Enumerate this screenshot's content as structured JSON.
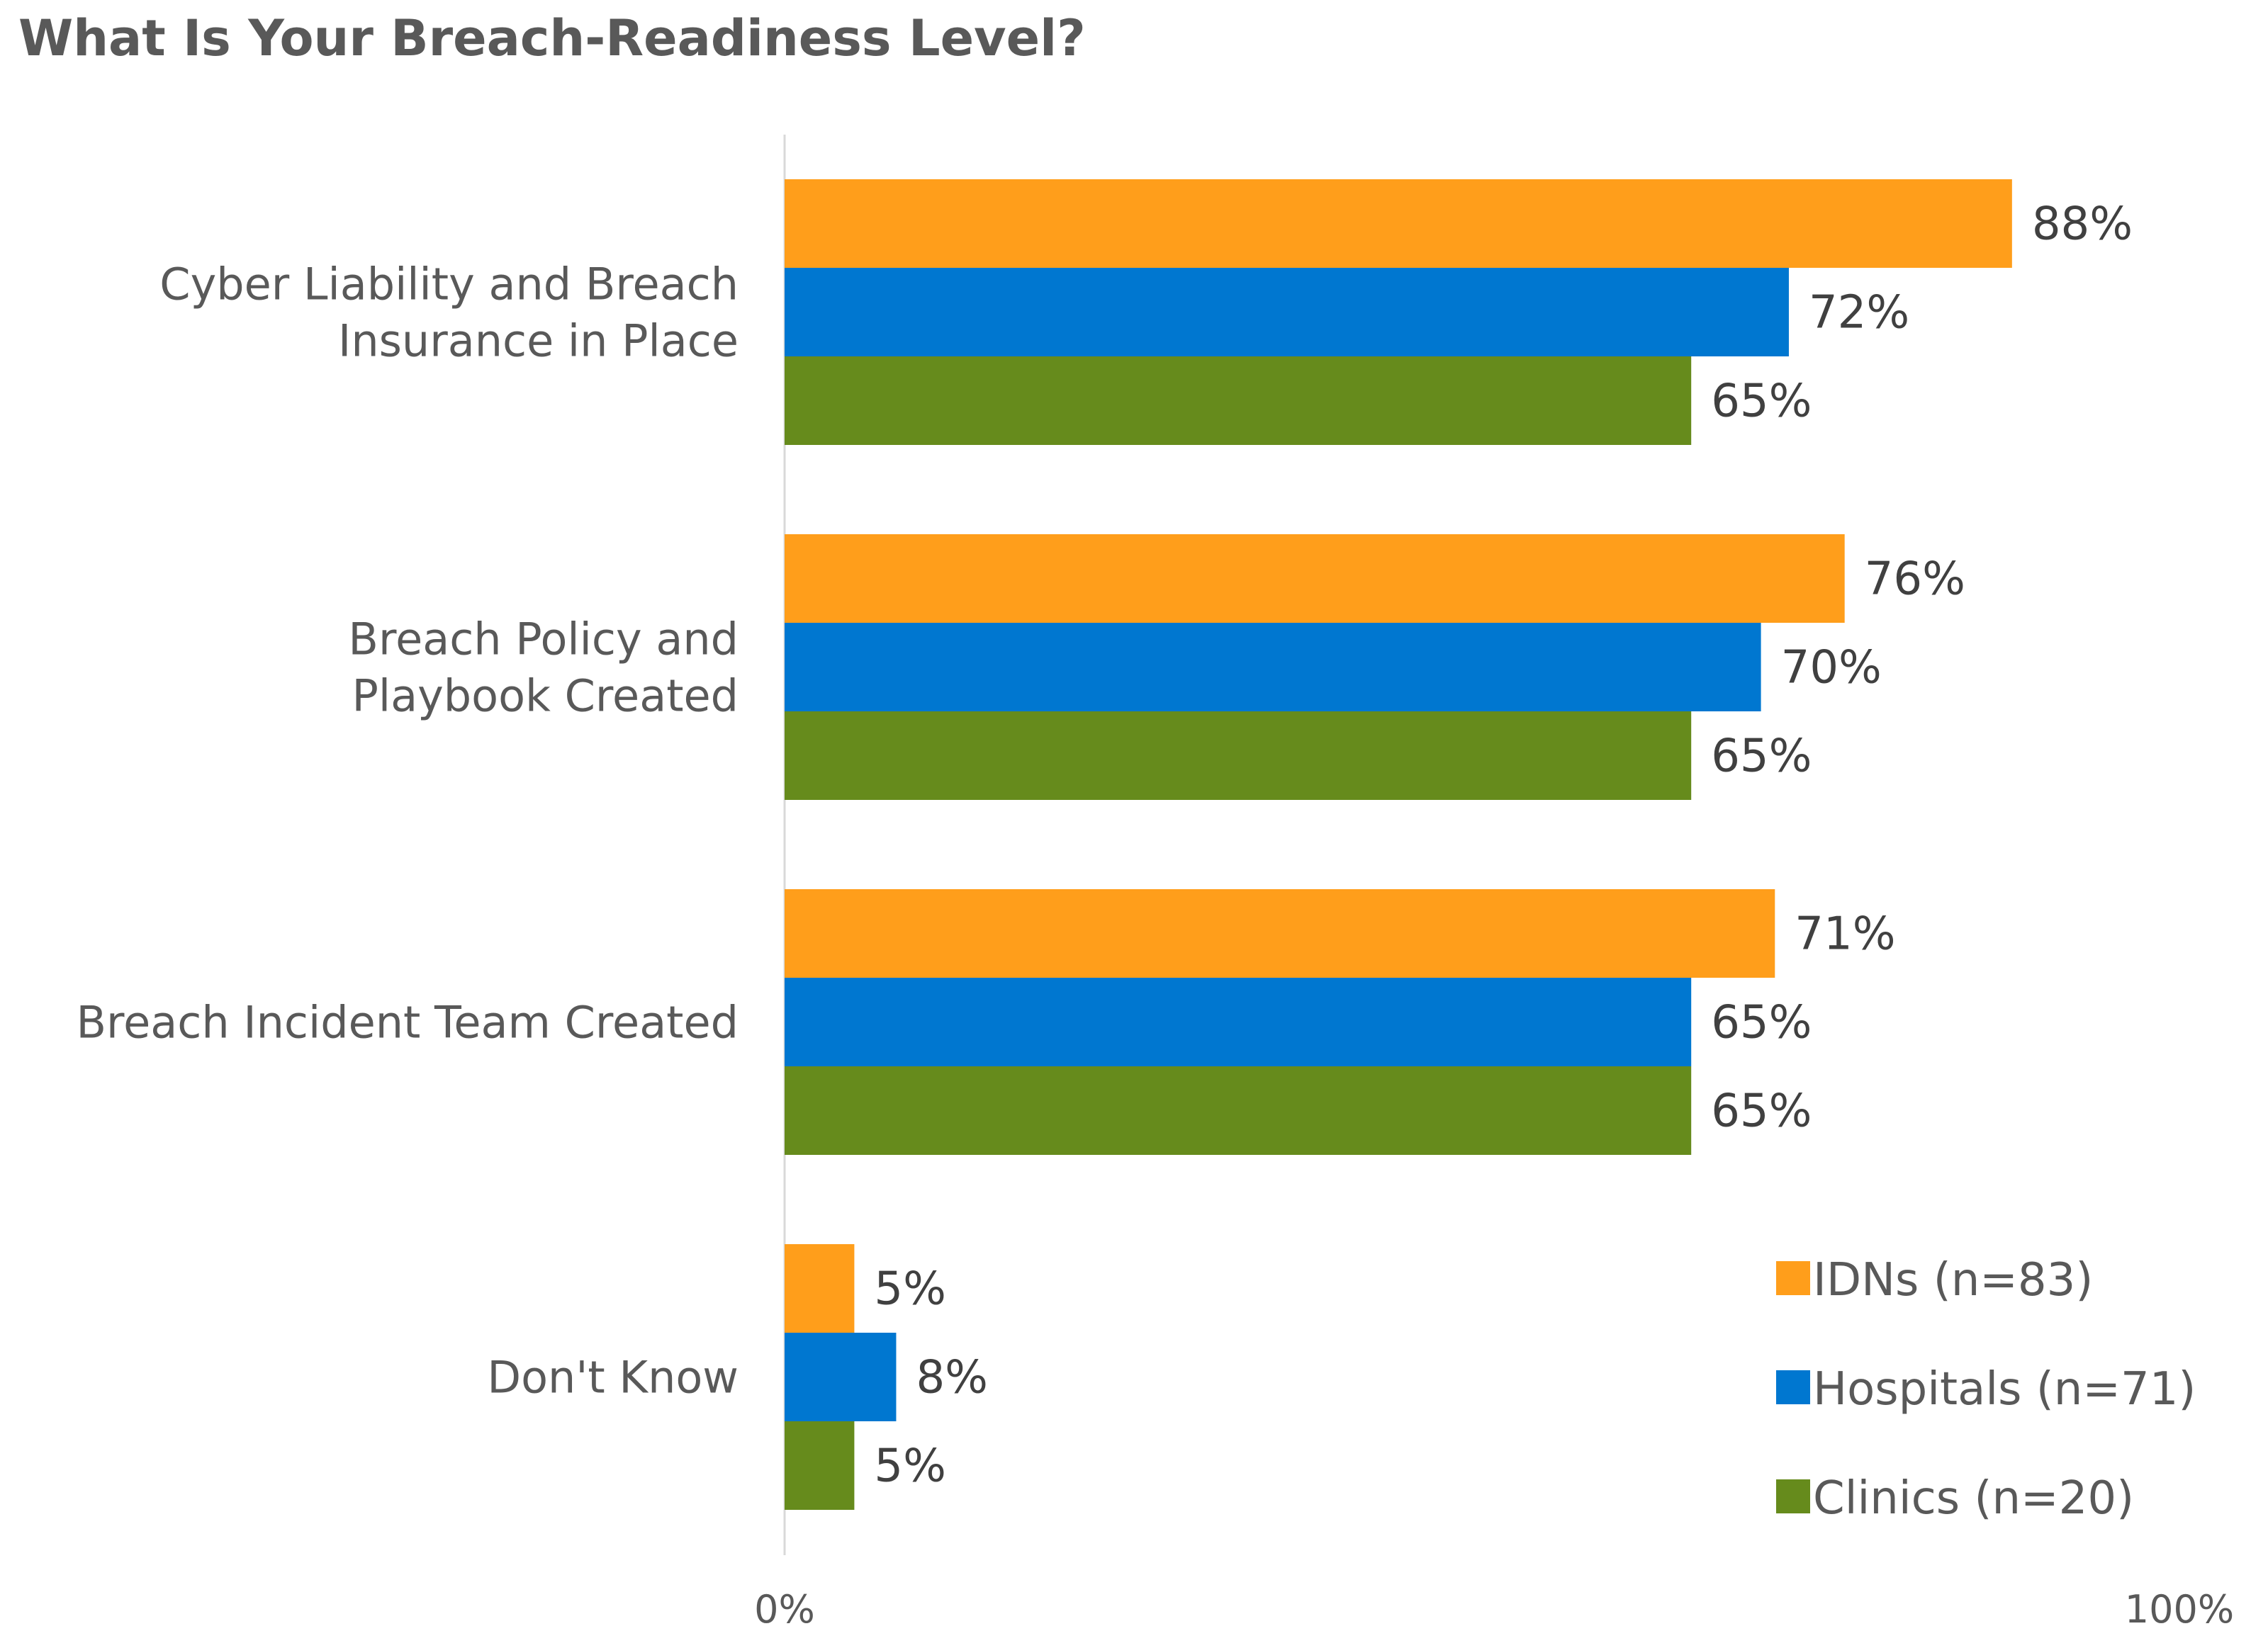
{
  "chart_data": {
    "type": "bar",
    "orientation": "horizontal",
    "title": "What Is Your Breach-Readiness Level?",
    "categories": [
      [
        "Cyber Liability and Breach",
        "Insurance in Place"
      ],
      [
        "Breach Policy and",
        "Playbook Created"
      ],
      [
        "Breach Incident Team Created"
      ],
      [
        "Don't Know"
      ]
    ],
    "series": [
      {
        "name": "IDNs (n=83)",
        "color": "#FF9E1B",
        "values": [
          88,
          76,
          71,
          5
        ]
      },
      {
        "name": "Hospitals (n=71)",
        "color": "#0077D0",
        "values": [
          72,
          70,
          65,
          8
        ]
      },
      {
        "name": "Clinics (n=20)",
        "color": "#668B1C",
        "values": [
          65,
          65,
          65,
          5
        ]
      }
    ],
    "xlim": [
      0,
      100
    ],
    "xticks": [
      "0%",
      "100%"
    ],
    "value_suffix": "%",
    "legend": "bottom-right",
    "grid": false
  }
}
